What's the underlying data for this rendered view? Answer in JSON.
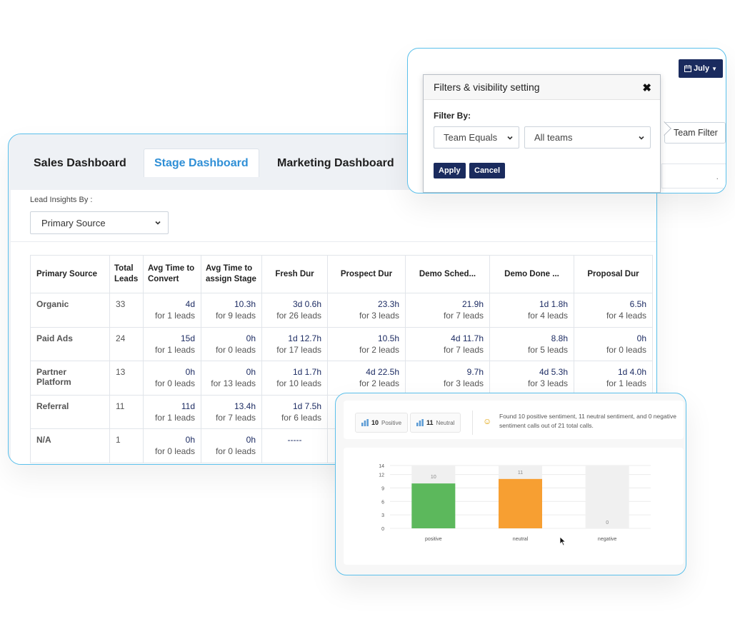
{
  "tabs": {
    "sales": "Sales Dashboard",
    "stage": "Stage Dashboard",
    "marketing": "Marketing Dashboard"
  },
  "insights": {
    "label": "Lead Insights By :",
    "selected": "Primary Source"
  },
  "table": {
    "headers": [
      "Primary Source",
      "Total Leads",
      "Avg Time to Convert",
      "Avg Time to assign Stage",
      "Fresh Dur",
      "Prospect Dur",
      "Demo Sched...",
      "Demo Done ...",
      "Proposal Dur"
    ],
    "rows": [
      {
        "source": "Organic",
        "total": "33",
        "cells": [
          [
            "4d",
            "for 1 leads"
          ],
          [
            "10.3h",
            "for 9 leads"
          ],
          [
            "3d 0.6h",
            "for 26 leads"
          ],
          [
            "23.3h",
            "for 3 leads"
          ],
          [
            "21.9h",
            "for 7 leads"
          ],
          [
            "1d 1.8h",
            "for 4 leads"
          ],
          [
            "6.5h",
            "for 4 leads"
          ]
        ]
      },
      {
        "source": "Paid Ads",
        "total": "24",
        "cells": [
          [
            "15d",
            "for 1 leads"
          ],
          [
            "0h",
            "for 0 leads"
          ],
          [
            "1d 12.7h",
            "for 17 leads"
          ],
          [
            "10.5h",
            "for 2 leads"
          ],
          [
            "4d 11.7h",
            "for 7 leads"
          ],
          [
            "8.8h",
            "for 5 leads"
          ],
          [
            "0h",
            "for 0 leads"
          ]
        ]
      },
      {
        "source": "Partner Platform",
        "total": "13",
        "cells": [
          [
            "0h",
            "for 0 leads"
          ],
          [
            "0h",
            "for 13 leads"
          ],
          [
            "1d 1.7h",
            "for 10 leads"
          ],
          [
            "4d 22.5h",
            "for 2 leads"
          ],
          [
            "9.7h",
            "for 3 leads"
          ],
          [
            "4d 5.3h",
            "for 3 leads"
          ],
          [
            "1d 4.0h",
            "for 1 leads"
          ]
        ]
      },
      {
        "source": "Referral",
        "total": "11",
        "cells": [
          [
            "11d",
            "for 1 leads"
          ],
          [
            "13.4h",
            "for 7 leads"
          ],
          [
            "1d 7.5h",
            "for 6 leads"
          ],
          [
            "",
            ""
          ],
          [
            "",
            ""
          ],
          [
            "",
            ""
          ],
          [
            "",
            ""
          ]
        ]
      },
      {
        "source": "N/A",
        "total": "1",
        "cells": [
          [
            "0h",
            "for 0 leads"
          ],
          [
            "0h",
            "for 0 leads"
          ],
          [
            "-----",
            ""
          ],
          [
            "",
            ""
          ],
          [
            "",
            ""
          ],
          [
            "",
            ""
          ],
          [
            "",
            ""
          ]
        ]
      }
    ]
  },
  "filter": {
    "month_button": "July",
    "title": "Filters & visibility setting",
    "close": "✖",
    "filter_by": "Filter By:",
    "condition": "Team Equals",
    "value": "All teams",
    "apply": "Apply",
    "cancel": "Cancel",
    "team_filter": "Team Filter",
    "ghost_text": "."
  },
  "sentiment": {
    "positive_count": "10",
    "positive_label": "Positive",
    "neutral_count": "11",
    "neutral_label": "Neutral",
    "summary": "Found 10 positive sentiment, 11 neutral sentiment, and 0 negative sentiment calls out of 21 total calls."
  },
  "chart_data": {
    "type": "bar",
    "categories": [
      "positive",
      "neutral",
      "negative"
    ],
    "values": [
      10,
      11,
      0
    ],
    "colors": [
      "#5cb85c",
      "#f79f32",
      "#d9d9d9"
    ],
    "ylim": [
      0,
      14
    ],
    "yticks": [
      0,
      3,
      6,
      9,
      12,
      14
    ],
    "title": "",
    "xlabel": "",
    "ylabel": ""
  }
}
